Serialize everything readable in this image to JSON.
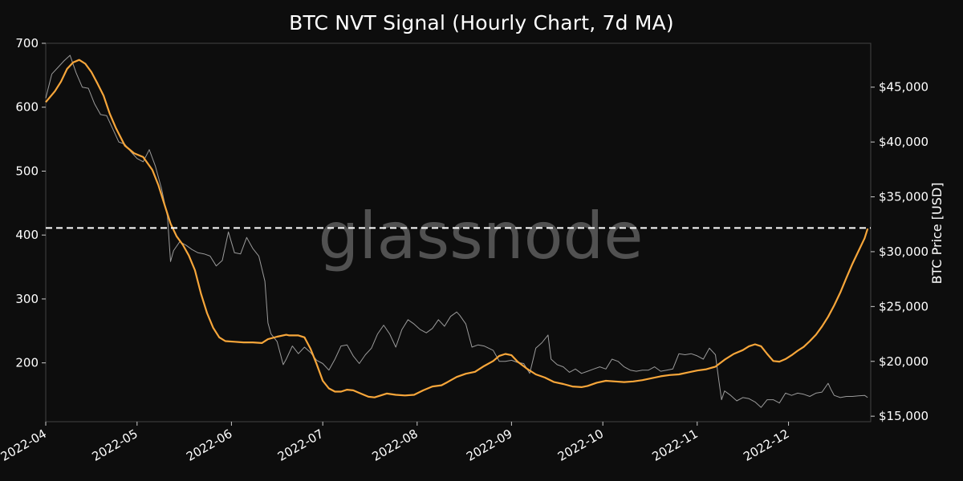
{
  "title": "BTC NVT Signal (Hourly Chart, 7d MA)",
  "watermark": "glassnode",
  "colors": {
    "background": "#0d0d0d",
    "nvt_line": "#f7a63a",
    "price_line": "#9a9a9a",
    "threshold_line": "#ffffff",
    "text": "#ffffff"
  },
  "chart_data": {
    "type": "line",
    "title": "BTC NVT Signal (Hourly Chart, 7d MA)",
    "xlabel": "",
    "ylabel_left": "",
    "ylabel_right": "BTC Price [USD]",
    "x_tick_labels": [
      "2022-04",
      "2022-05",
      "2022-06",
      "2022-07",
      "2022-08",
      "2022-09",
      "2022-10",
      "2022-11",
      "2022-12"
    ],
    "x_tick_dates": [
      "2022-04-01",
      "2022-05-01",
      "2022-06-01",
      "2022-07-01",
      "2022-08-01",
      "2022-09-01",
      "2022-10-01",
      "2022-11-01",
      "2022-12-01"
    ],
    "xlim": [
      "2022-04-01",
      "2022-12-28"
    ],
    "left_ticks": [
      200,
      300,
      400,
      500,
      600,
      700
    ],
    "left_ylim": [
      108,
      700
    ],
    "right_ticks": [
      15000,
      20000,
      25000,
      30000,
      35000,
      40000,
      45000
    ],
    "right_tick_labels": [
      "$15,000",
      "$20,000",
      "$25,000",
      "$30,000",
      "$35,000",
      "$40,000",
      "$45,000"
    ],
    "right_ylim": [
      14500,
      49000
    ],
    "threshold": {
      "axis": "left",
      "value": 411,
      "style": "dashed"
    },
    "grid": false,
    "series": [
      {
        "axis": "left",
        "color": "#f7a63a",
        "points": [
          [
            "2022-04-01",
            608
          ],
          [
            "2022-04-04",
            625
          ],
          [
            "2022-04-06",
            640
          ],
          [
            "2022-04-08",
            660
          ],
          [
            "2022-04-10",
            670
          ],
          [
            "2022-04-12",
            674
          ],
          [
            "2022-04-14",
            668
          ],
          [
            "2022-04-16",
            655
          ],
          [
            "2022-04-18",
            637
          ],
          [
            "2022-04-20",
            618
          ],
          [
            "2022-04-22",
            590
          ],
          [
            "2022-04-24",
            568
          ],
          [
            "2022-04-27",
            540
          ],
          [
            "2022-04-30",
            528
          ],
          [
            "2022-05-03",
            522
          ],
          [
            "2022-05-06",
            502
          ],
          [
            "2022-05-08",
            478
          ],
          [
            "2022-05-10",
            448
          ],
          [
            "2022-05-12",
            418
          ],
          [
            "2022-05-14",
            398
          ],
          [
            "2022-05-16",
            385
          ],
          [
            "2022-05-18",
            368
          ],
          [
            "2022-05-20",
            345
          ],
          [
            "2022-05-22",
            308
          ],
          [
            "2022-05-24",
            278
          ],
          [
            "2022-05-26",
            255
          ],
          [
            "2022-05-28",
            240
          ],
          [
            "2022-05-30",
            234
          ],
          [
            "2022-06-02",
            233
          ],
          [
            "2022-06-05",
            232
          ],
          [
            "2022-06-08",
            232
          ],
          [
            "2022-06-11",
            231
          ],
          [
            "2022-06-13",
            237
          ],
          [
            "2022-06-16",
            241
          ],
          [
            "2022-06-19",
            244
          ],
          [
            "2022-06-20",
            243
          ],
          [
            "2022-06-23",
            243
          ],
          [
            "2022-06-25",
            240
          ],
          [
            "2022-06-27",
            222
          ],
          [
            "2022-06-29",
            198
          ],
          [
            "2022-07-01",
            172
          ],
          [
            "2022-07-03",
            160
          ],
          [
            "2022-07-05",
            155
          ],
          [
            "2022-07-07",
            155
          ],
          [
            "2022-07-09",
            158
          ],
          [
            "2022-07-11",
            157
          ],
          [
            "2022-07-13",
            153
          ],
          [
            "2022-07-16",
            147
          ],
          [
            "2022-07-18",
            146
          ],
          [
            "2022-07-20",
            149
          ],
          [
            "2022-07-22",
            152
          ],
          [
            "2022-07-25",
            150
          ],
          [
            "2022-07-28",
            149
          ],
          [
            "2022-07-31",
            150
          ],
          [
            "2022-08-03",
            157
          ],
          [
            "2022-08-06",
            163
          ],
          [
            "2022-08-09",
            165
          ],
          [
            "2022-08-11",
            170
          ],
          [
            "2022-08-14",
            178
          ],
          [
            "2022-08-17",
            183
          ],
          [
            "2022-08-20",
            186
          ],
          [
            "2022-08-23",
            195
          ],
          [
            "2022-08-26",
            203
          ],
          [
            "2022-08-28",
            211
          ],
          [
            "2022-08-30",
            214
          ],
          [
            "2022-09-01",
            212
          ],
          [
            "2022-09-03",
            202
          ],
          [
            "2022-09-06",
            191
          ],
          [
            "2022-09-09",
            182
          ],
          [
            "2022-09-12",
            177
          ],
          [
            "2022-09-15",
            170
          ],
          [
            "2022-09-18",
            167
          ],
          [
            "2022-09-21",
            163
          ],
          [
            "2022-09-24",
            162
          ],
          [
            "2022-09-26",
            164
          ],
          [
            "2022-09-29",
            169
          ],
          [
            "2022-10-02",
            172
          ],
          [
            "2022-10-05",
            171
          ],
          [
            "2022-10-08",
            170
          ],
          [
            "2022-10-11",
            171
          ],
          [
            "2022-10-14",
            173
          ],
          [
            "2022-10-17",
            176
          ],
          [
            "2022-10-20",
            179
          ],
          [
            "2022-10-23",
            181
          ],
          [
            "2022-10-26",
            182
          ],
          [
            "2022-10-29",
            185
          ],
          [
            "2022-11-01",
            188
          ],
          [
            "2022-11-04",
            190
          ],
          [
            "2022-11-07",
            194
          ],
          [
            "2022-11-10",
            205
          ],
          [
            "2022-11-13",
            214
          ],
          [
            "2022-11-16",
            220
          ],
          [
            "2022-11-18",
            226
          ],
          [
            "2022-11-20",
            229
          ],
          [
            "2022-11-22",
            226
          ],
          [
            "2022-11-24",
            214
          ],
          [
            "2022-11-26",
            203
          ],
          [
            "2022-11-28",
            202
          ],
          [
            "2022-11-30",
            206
          ],
          [
            "2022-12-02",
            212
          ],
          [
            "2022-12-04",
            219
          ],
          [
            "2022-12-06",
            225
          ],
          [
            "2022-12-08",
            234
          ],
          [
            "2022-12-10",
            244
          ],
          [
            "2022-12-12",
            257
          ],
          [
            "2022-12-14",
            272
          ],
          [
            "2022-12-16",
            290
          ],
          [
            "2022-12-18",
            310
          ],
          [
            "2022-12-20",
            333
          ],
          [
            "2022-12-22",
            355
          ],
          [
            "2022-12-24",
            375
          ],
          [
            "2022-12-26",
            395
          ],
          [
            "2022-12-27",
            410
          ]
        ]
      },
      {
        "axis": "right",
        "color": "#9a9a9a",
        "points": [
          [
            "2022-04-01",
            44000
          ],
          [
            "2022-04-03",
            46200
          ],
          [
            "2022-04-05",
            46800
          ],
          [
            "2022-04-07",
            47400
          ],
          [
            "2022-04-09",
            47900
          ],
          [
            "2022-04-11",
            46300
          ],
          [
            "2022-04-13",
            45000
          ],
          [
            "2022-04-15",
            44900
          ],
          [
            "2022-04-17",
            43500
          ],
          [
            "2022-04-19",
            42500
          ],
          [
            "2022-04-21",
            42400
          ],
          [
            "2022-04-23",
            41200
          ],
          [
            "2022-04-25",
            40000
          ],
          [
            "2022-04-27",
            39800
          ],
          [
            "2022-04-29",
            39100
          ],
          [
            "2022-05-01",
            38500
          ],
          [
            "2022-05-03",
            38200
          ],
          [
            "2022-05-05",
            39300
          ],
          [
            "2022-05-07",
            37800
          ],
          [
            "2022-05-09",
            35800
          ],
          [
            "2022-05-11",
            33200
          ],
          [
            "2022-05-12",
            29100
          ],
          [
            "2022-05-13",
            30100
          ],
          [
            "2022-05-15",
            30900
          ],
          [
            "2022-05-17",
            30600
          ],
          [
            "2022-05-19",
            30200
          ],
          [
            "2022-05-21",
            29900
          ],
          [
            "2022-05-23",
            29800
          ],
          [
            "2022-05-25",
            29600
          ],
          [
            "2022-05-27",
            28700
          ],
          [
            "2022-05-29",
            29200
          ],
          [
            "2022-05-31",
            31800
          ],
          [
            "2022-06-02",
            29900
          ],
          [
            "2022-06-04",
            29800
          ],
          [
            "2022-06-06",
            31300
          ],
          [
            "2022-06-08",
            30300
          ],
          [
            "2022-06-10",
            29600
          ],
          [
            "2022-06-12",
            27300
          ],
          [
            "2022-06-13",
            23500
          ],
          [
            "2022-06-14",
            22500
          ],
          [
            "2022-06-16",
            21800
          ],
          [
            "2022-06-18",
            19700
          ],
          [
            "2022-06-19",
            20200
          ],
          [
            "2022-06-21",
            21400
          ],
          [
            "2022-06-23",
            20700
          ],
          [
            "2022-06-25",
            21300
          ],
          [
            "2022-06-27",
            20800
          ],
          [
            "2022-06-29",
            20100
          ],
          [
            "2022-07-01",
            19800
          ],
          [
            "2022-07-03",
            19200
          ],
          [
            "2022-07-05",
            20200
          ],
          [
            "2022-07-07",
            21400
          ],
          [
            "2022-07-09",
            21500
          ],
          [
            "2022-07-11",
            20500
          ],
          [
            "2022-07-13",
            19800
          ],
          [
            "2022-07-15",
            20600
          ],
          [
            "2022-07-17",
            21200
          ],
          [
            "2022-07-19",
            22500
          ],
          [
            "2022-07-21",
            23300
          ],
          [
            "2022-07-23",
            22500
          ],
          [
            "2022-07-25",
            21300
          ],
          [
            "2022-07-27",
            22900
          ],
          [
            "2022-07-29",
            23800
          ],
          [
            "2022-07-31",
            23400
          ],
          [
            "2022-08-02",
            22900
          ],
          [
            "2022-08-04",
            22600
          ],
          [
            "2022-08-06",
            23000
          ],
          [
            "2022-08-08",
            23800
          ],
          [
            "2022-08-10",
            23200
          ],
          [
            "2022-08-12",
            24100
          ],
          [
            "2022-08-14",
            24500
          ],
          [
            "2022-08-15",
            24200
          ],
          [
            "2022-08-17",
            23400
          ],
          [
            "2022-08-19",
            21300
          ],
          [
            "2022-08-21",
            21500
          ],
          [
            "2022-08-23",
            21400
          ],
          [
            "2022-08-26",
            21000
          ],
          [
            "2022-08-28",
            20000
          ],
          [
            "2022-08-30",
            20000
          ],
          [
            "2022-09-01",
            20100
          ],
          [
            "2022-09-03",
            19900
          ],
          [
            "2022-09-05",
            19800
          ],
          [
            "2022-09-07",
            18900
          ],
          [
            "2022-09-09",
            21200
          ],
          [
            "2022-09-11",
            21700
          ],
          [
            "2022-09-13",
            22400
          ],
          [
            "2022-09-14",
            20200
          ],
          [
            "2022-09-16",
            19700
          ],
          [
            "2022-09-18",
            19500
          ],
          [
            "2022-09-20",
            19000
          ],
          [
            "2022-09-22",
            19300
          ],
          [
            "2022-09-24",
            18900
          ],
          [
            "2022-09-26",
            19100
          ],
          [
            "2022-09-28",
            19300
          ],
          [
            "2022-09-30",
            19500
          ],
          [
            "2022-10-02",
            19300
          ],
          [
            "2022-10-04",
            20200
          ],
          [
            "2022-10-06",
            20000
          ],
          [
            "2022-10-08",
            19500
          ],
          [
            "2022-10-10",
            19200
          ],
          [
            "2022-10-12",
            19100
          ],
          [
            "2022-10-14",
            19200
          ],
          [
            "2022-10-16",
            19200
          ],
          [
            "2022-10-18",
            19500
          ],
          [
            "2022-10-20",
            19100
          ],
          [
            "2022-10-22",
            19200
          ],
          [
            "2022-10-24",
            19300
          ],
          [
            "2022-10-26",
            20700
          ],
          [
            "2022-10-28",
            20600
          ],
          [
            "2022-10-30",
            20700
          ],
          [
            "2022-11-01",
            20500
          ],
          [
            "2022-11-03",
            20200
          ],
          [
            "2022-11-05",
            21200
          ],
          [
            "2022-11-07",
            20600
          ],
          [
            "2022-11-08",
            18500
          ],
          [
            "2022-11-09",
            16500
          ],
          [
            "2022-11-10",
            17300
          ],
          [
            "2022-11-12",
            16900
          ],
          [
            "2022-11-14",
            16400
          ],
          [
            "2022-11-16",
            16700
          ],
          [
            "2022-11-18",
            16600
          ],
          [
            "2022-11-20",
            16300
          ],
          [
            "2022-11-22",
            15800
          ],
          [
            "2022-11-24",
            16500
          ],
          [
            "2022-11-26",
            16500
          ],
          [
            "2022-11-28",
            16200
          ],
          [
            "2022-11-30",
            17100
          ],
          [
            "2022-12-02",
            16900
          ],
          [
            "2022-12-04",
            17100
          ],
          [
            "2022-12-06",
            17000
          ],
          [
            "2022-12-08",
            16800
          ],
          [
            "2022-12-10",
            17100
          ],
          [
            "2022-12-12",
            17200
          ],
          [
            "2022-12-14",
            18000
          ],
          [
            "2022-12-15",
            17400
          ],
          [
            "2022-12-16",
            16900
          ],
          [
            "2022-12-18",
            16700
          ],
          [
            "2022-12-20",
            16800
          ],
          [
            "2022-12-22",
            16800
          ],
          [
            "2022-12-24",
            16850
          ],
          [
            "2022-12-26",
            16900
          ],
          [
            "2022-12-27",
            16700
          ]
        ]
      }
    ]
  }
}
